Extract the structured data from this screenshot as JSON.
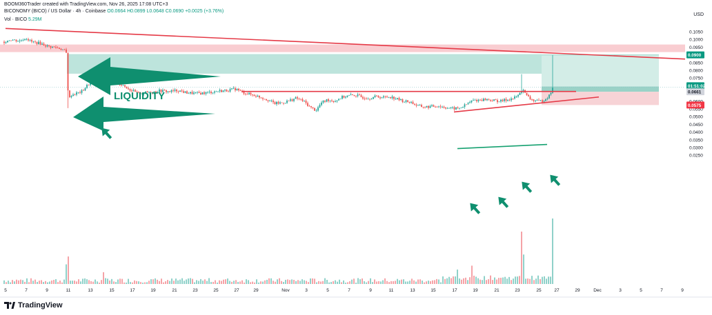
{
  "header": {
    "line1": "BOOM360Trader created with TradingView.com, Nov 26, 2025 17:08 UTC+3",
    "symbol": "BICONOMY (BICO) / US Dollar · 4h · Coinbase",
    "ohlc": "O0.0664 H0.0899 L0.0648 C0.0690 +0.0025 (+3.76%)",
    "vol_label": "Vol · BICO",
    "vol_value": "5.29M"
  },
  "currency": "USD",
  "logo_text": "TradingView",
  "colors": {
    "up": "#26a69a",
    "down": "#ef5350",
    "zone_green": "#b2dfd6",
    "zone_red": "#f8c8cc",
    "arrow": "#0f8f6f",
    "line": "#e53946"
  },
  "chart_data": {
    "type": "candlestick",
    "price_axis": {
      "range": [
        0.0225,
        0.1085
      ],
      "ticks": [
        "0.1050",
        "0.1000",
        "0.0950",
        "0.0900",
        "0.0850",
        "0.0800",
        "0.0750",
        "0.0700",
        "0.0650",
        "0.0600",
        "0.0550",
        "0.0500",
        "0.0450",
        "0.0400",
        "0.0350",
        "0.0300",
        "0.0250"
      ],
      "labels": [
        {
          "value": "0.0900",
          "kind": "green"
        },
        {
          "value": "01:51:02",
          "kind": "green"
        },
        {
          "value": "0.0661",
          "kind": "grey"
        },
        {
          "value": "0.0575",
          "kind": "red"
        }
      ]
    },
    "date_ticks": [
      "5",
      "7",
      "9",
      "11",
      "13",
      "15",
      "17",
      "19",
      "21",
      "23",
      "25",
      "27",
      "29",
      "Nov",
      "3",
      "5",
      "7",
      "9",
      "11",
      "13",
      "15",
      "17",
      "19",
      "21",
      "23",
      "25",
      "27",
      "29",
      "Dec",
      "3",
      "5",
      "7",
      "9"
    ],
    "annotations": {
      "liquidity_text": "LIQUIDITY"
    }
  }
}
